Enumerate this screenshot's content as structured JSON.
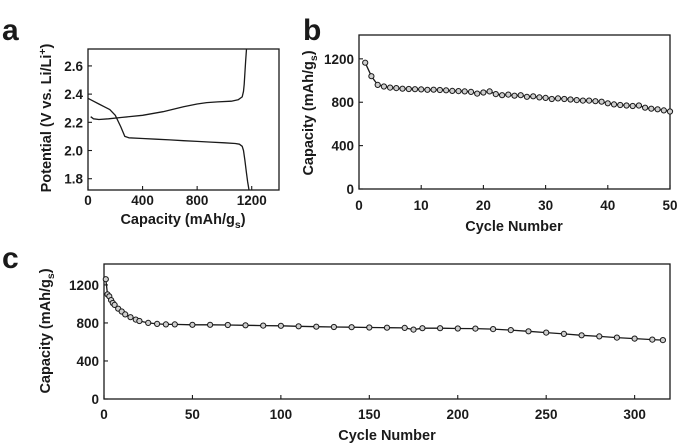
{
  "chart_data": [
    {
      "id": "a",
      "panel_label": "a",
      "type": "line",
      "xlabel": "Capacity (mAh/g",
      "xlabel_sub": "s",
      "xlabel_end": ")",
      "ylabel": "Potential (V vs. Li/Li",
      "ylabel_sup": "+",
      "ylabel_end": ")",
      "xlim": [
        0,
        1400
      ],
      "ylim": [
        1.72,
        2.72
      ],
      "xticks": [
        0,
        400,
        800,
        1200
      ],
      "xtick_labels": [
        "0",
        "400",
        "800",
        "1200"
      ],
      "yticks": [
        1.8,
        2.0,
        2.2,
        2.4,
        2.6
      ],
      "ytick_labels": [
        "1.8",
        "2.0",
        "2.2",
        "2.4",
        "2.6"
      ],
      "series": [
        {
          "role": "discharge",
          "x": [
            0,
            40,
            80,
            120,
            160,
            200,
            240,
            270,
            300,
            400,
            500,
            600,
            700,
            800,
            900,
            1000,
            1080,
            1110,
            1130,
            1140,
            1150,
            1160,
            1170,
            1180
          ],
          "y": [
            2.37,
            2.35,
            2.33,
            2.31,
            2.29,
            2.25,
            2.17,
            2.1,
            2.09,
            2.085,
            2.08,
            2.075,
            2.07,
            2.065,
            2.06,
            2.055,
            2.05,
            2.045,
            2.03,
            2.0,
            1.93,
            1.85,
            1.78,
            1.72
          ]
        },
        {
          "role": "charge",
          "x": [
            20,
            40,
            80,
            150,
            250,
            400,
            550,
            700,
            800,
            870,
            950,
            1050,
            1100,
            1130,
            1140,
            1145,
            1150,
            1155,
            1160,
            1162
          ],
          "y": [
            2.24,
            2.225,
            2.22,
            2.225,
            2.235,
            2.25,
            2.275,
            2.31,
            2.33,
            2.34,
            2.345,
            2.35,
            2.36,
            2.38,
            2.42,
            2.47,
            2.55,
            2.63,
            2.7,
            2.72
          ]
        }
      ]
    },
    {
      "id": "b",
      "panel_label": "b",
      "type": "line",
      "markers": true,
      "xlabel": "Cycle Number",
      "ylabel": "Capacity (mAh/g",
      "ylabel_sub": "s",
      "ylabel_end": ")",
      "xlim": [
        0,
        50
      ],
      "ylim": [
        0,
        1420
      ],
      "xticks": [
        0,
        10,
        20,
        30,
        40,
        50
      ],
      "xtick_labels": [
        "0",
        "10",
        "20",
        "30",
        "40",
        "50"
      ],
      "yticks": [
        0,
        400,
        800,
        1200
      ],
      "ytick_labels": [
        "0",
        "400",
        "800",
        "1200"
      ],
      "series": [
        {
          "x": [
            1,
            2,
            3,
            4,
            5,
            6,
            7,
            8,
            9,
            10,
            11,
            12,
            13,
            14,
            15,
            16,
            17,
            18,
            19,
            20,
            21,
            22,
            23,
            24,
            25,
            26,
            27,
            28,
            29,
            30,
            31,
            32,
            33,
            34,
            35,
            36,
            37,
            38,
            39,
            40,
            41,
            42,
            43,
            44,
            45,
            46,
            47,
            48,
            49,
            50
          ],
          "y": [
            1165,
            1040,
            960,
            945,
            935,
            930,
            925,
            922,
            920,
            918,
            915,
            916,
            913,
            910,
            905,
            903,
            900,
            895,
            880,
            890,
            900,
            875,
            865,
            870,
            860,
            865,
            850,
            855,
            845,
            840,
            830,
            835,
            830,
            825,
            820,
            815,
            815,
            810,
            805,
            790,
            780,
            775,
            770,
            765,
            770,
            750,
            740,
            735,
            725,
            715
          ]
        }
      ]
    },
    {
      "id": "c",
      "panel_label": "c",
      "type": "line",
      "markers": true,
      "xlabel": "Cycle Number",
      "ylabel": "Capacity (mAh/g",
      "ylabel_sub": "s",
      "ylabel_end": ")",
      "xlim": [
        0,
        320
      ],
      "ylim": [
        0,
        1420
      ],
      "xticks": [
        0,
        50,
        100,
        150,
        200,
        250,
        300
      ],
      "xtick_labels": [
        "0",
        "50",
        "100",
        "150",
        "200",
        "250",
        "300"
      ],
      "yticks": [
        0,
        400,
        800,
        1200
      ],
      "ytick_labels": [
        "0",
        "400",
        "800",
        "1200"
      ],
      "series": [
        {
          "x": [
            1,
            2,
            3,
            4,
            5,
            6,
            8,
            10,
            12,
            15,
            18,
            20,
            25,
            30,
            35,
            40,
            50,
            60,
            70,
            80,
            90,
            100,
            110,
            120,
            130,
            140,
            150,
            160,
            170,
            175,
            180,
            190,
            200,
            210,
            220,
            230,
            240,
            250,
            260,
            270,
            280,
            290,
            300,
            310,
            316
          ],
          "y": [
            1260,
            1100,
            1080,
            1040,
            1010,
            990,
            950,
            920,
            890,
            860,
            835,
            820,
            800,
            790,
            785,
            785,
            780,
            780,
            778,
            775,
            772,
            770,
            765,
            760,
            757,
            755,
            752,
            750,
            748,
            730,
            745,
            745,
            742,
            740,
            735,
            725,
            712,
            698,
            685,
            670,
            658,
            646,
            635,
            625,
            620
          ]
        }
      ]
    }
  ]
}
